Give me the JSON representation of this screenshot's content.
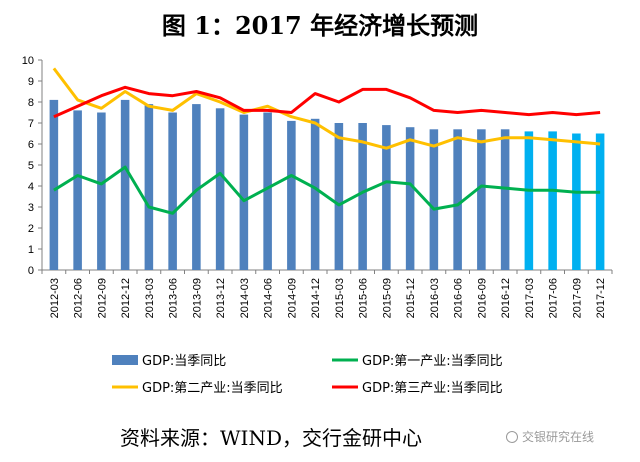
{
  "title": "图 1：2017 年经济增长预测",
  "source": "资料来源：WIND，交行金研中心",
  "watermark": "交银研究在线",
  "colors": {
    "bar_actual": "#4f81bd",
    "bar_forecast": "#00b0f0",
    "primary": "#00b050",
    "secondary": "#ffc000",
    "tertiary": "#ff0000"
  },
  "chart_data": {
    "type": "bar",
    "categories": [
      "2012-03",
      "2012-06",
      "2012-09",
      "2012-12",
      "2013-03",
      "2013-06",
      "2013-09",
      "2013-12",
      "2014-03",
      "2014-06",
      "2014-09",
      "2014-12",
      "2015-03",
      "2015-06",
      "2015-09",
      "2015-12",
      "2016-03",
      "2016-06",
      "2016-09",
      "2016-12",
      "2017-03",
      "2017-06",
      "2017-09",
      "2017-12"
    ],
    "forecast_from_index": 20,
    "ylim": [
      0,
      10
    ],
    "yticks": [
      0,
      1,
      2,
      3,
      4,
      5,
      6,
      7,
      8,
      9,
      10
    ],
    "grid": false,
    "legend_position": "bottom",
    "series": [
      {
        "name": "GDP:当季同比",
        "kind": "bar",
        "values": [
          8.1,
          7.6,
          7.5,
          8.1,
          7.9,
          7.5,
          7.9,
          7.7,
          7.4,
          7.5,
          7.1,
          7.2,
          7.0,
          7.0,
          6.9,
          6.8,
          6.7,
          6.7,
          6.7,
          6.7,
          6.6,
          6.6,
          6.5,
          6.5
        ]
      },
      {
        "name": "GDP:第一产业:当季同比",
        "kind": "line",
        "values": [
          3.8,
          4.5,
          4.1,
          4.9,
          3.0,
          2.7,
          3.8,
          4.6,
          3.3,
          3.9,
          4.5,
          3.9,
          3.1,
          3.7,
          4.2,
          4.1,
          2.9,
          3.1,
          4.0,
          3.9,
          3.8,
          3.8,
          3.7,
          3.7
        ]
      },
      {
        "name": "GDP:第二产业:当季同比",
        "kind": "line",
        "values": [
          9.6,
          8.1,
          7.7,
          8.5,
          7.8,
          7.6,
          8.4,
          8.0,
          7.5,
          7.8,
          7.3,
          7.0,
          6.3,
          6.1,
          5.8,
          6.2,
          5.9,
          6.3,
          6.1,
          6.3,
          6.3,
          6.2,
          6.1,
          6.0
        ]
      },
      {
        "name": "GDP:第三产业:当季同比",
        "kind": "line",
        "values": [
          7.3,
          7.8,
          8.3,
          8.7,
          8.4,
          8.3,
          8.5,
          8.2,
          7.6,
          7.6,
          7.5,
          8.4,
          8.0,
          8.6,
          8.6,
          8.2,
          7.6,
          7.5,
          7.6,
          7.5,
          7.4,
          7.5,
          7.4,
          7.5
        ]
      }
    ]
  }
}
